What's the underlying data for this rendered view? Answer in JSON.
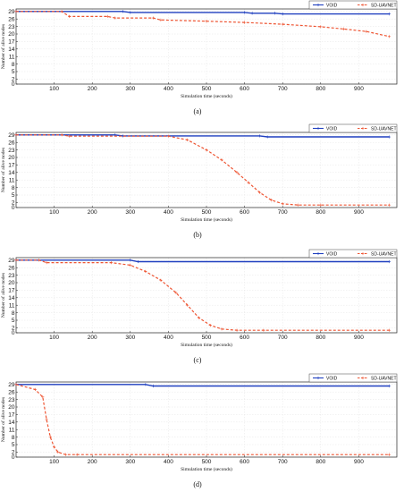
{
  "chart_data": [
    {
      "panel": "(a)",
      "type": "line",
      "xlabel": "Simulation time (seconds)",
      "ylabel": "Number of alive nodes",
      "xlim": [
        0,
        1000
      ],
      "ylim": [
        0,
        30
      ],
      "xticks": [
        100,
        200,
        300,
        400,
        500,
        600,
        700,
        800,
        900
      ],
      "yticks": [
        0,
        2,
        5,
        8,
        11,
        14,
        17,
        20,
        23,
        26,
        29
      ],
      "grid": true,
      "legend": "top-right",
      "series": [
        {
          "name": "VOID",
          "color": "#1f3fbf",
          "style": "solid",
          "marker": "plus",
          "x": [
            0,
            280,
            300,
            600,
            620,
            680,
            700,
            980
          ],
          "y": [
            29,
            29,
            28.6,
            28.6,
            28.3,
            28.3,
            28,
            28
          ]
        },
        {
          "name": "SD-UAVNET",
          "color": "#ee5533",
          "style": "dashed",
          "marker": "plus",
          "x": [
            0,
            120,
            140,
            240,
            260,
            360,
            380,
            500,
            600,
            700,
            800,
            860,
            920,
            980
          ],
          "y": [
            29,
            29,
            27,
            27,
            26.4,
            26.4,
            25.6,
            25.1,
            24.6,
            23.9,
            22.9,
            22,
            21,
            19
          ]
        }
      ]
    },
    {
      "panel": "(b)",
      "type": "line",
      "xlabel": "Simulation time (seconds)",
      "ylabel": "Number of alive nodes",
      "xlim": [
        0,
        1000
      ],
      "ylim": [
        0,
        30
      ],
      "xticks": [
        100,
        200,
        300,
        400,
        500,
        600,
        700,
        800,
        900
      ],
      "yticks": [
        0,
        2,
        5,
        8,
        11,
        14,
        17,
        20,
        23,
        26,
        29
      ],
      "grid": true,
      "legend": "top-right",
      "series": [
        {
          "name": "VOID",
          "color": "#1f3fbf",
          "style": "solid",
          "marker": "plus",
          "x": [
            0,
            260,
            280,
            640,
            660,
            980
          ],
          "y": [
            29,
            29,
            28.6,
            28.6,
            28.2,
            28.2
          ]
        },
        {
          "name": "SD-UAVNET",
          "color": "#ee5533",
          "style": "dashed",
          "marker": "plus",
          "x": [
            0,
            120,
            140,
            400,
            450,
            500,
            540,
            580,
            610,
            640,
            670,
            700,
            740,
            800,
            980
          ],
          "y": [
            29,
            29,
            28.5,
            28.5,
            27,
            23,
            19,
            14,
            10,
            6,
            3,
            1.5,
            1,
            1,
            1
          ]
        }
      ]
    },
    {
      "panel": "(c)",
      "type": "line",
      "xlabel": "Simulation time (seconds)",
      "ylabel": "Number of alive nodes",
      "xlim": [
        0,
        1000
      ],
      "ylim": [
        0,
        30
      ],
      "xticks": [
        100,
        200,
        300,
        400,
        500,
        600,
        700,
        800,
        900
      ],
      "yticks": [
        0,
        2,
        5,
        8,
        11,
        14,
        17,
        20,
        23,
        26,
        29
      ],
      "grid": true,
      "legend": "top-right",
      "series": [
        {
          "name": "VOID",
          "color": "#1f3fbf",
          "style": "solid",
          "marker": "plus",
          "x": [
            0,
            300,
            320,
            980
          ],
          "y": [
            29,
            29,
            28.4,
            28.4
          ]
        },
        {
          "name": "SD-UAVNET",
          "color": "#ee5533",
          "style": "dashed",
          "marker": "plus",
          "x": [
            0,
            60,
            80,
            250,
            300,
            340,
            380,
            420,
            450,
            480,
            510,
            540,
            580,
            650,
            980
          ],
          "y": [
            29,
            29,
            28,
            28,
            27,
            24.5,
            21,
            16,
            11,
            6,
            3,
            1.5,
            1,
            1,
            1
          ]
        }
      ]
    },
    {
      "panel": "(d)",
      "type": "line",
      "xlabel": "Simulation time (seconds)",
      "ylabel": "Number of alive nodes",
      "xlim": [
        0,
        1000
      ],
      "ylim": [
        0,
        30
      ],
      "xticks": [
        100,
        200,
        300,
        400,
        500,
        600,
        700,
        800,
        900
      ],
      "yticks": [
        0,
        2,
        5,
        8,
        11,
        14,
        17,
        20,
        23,
        26,
        29
      ],
      "grid": true,
      "legend": "top-right",
      "series": [
        {
          "name": "VOID",
          "color": "#1f3fbf",
          "style": "solid",
          "marker": "plus",
          "x": [
            0,
            340,
            360,
            980
          ],
          "y": [
            29,
            29,
            28.4,
            28.4
          ]
        },
        {
          "name": "SD-UAVNET",
          "color": "#ee5533",
          "style": "dashed",
          "marker": "plus",
          "x": [
            0,
            50,
            70,
            80,
            90,
            100,
            110,
            130,
            160,
            980
          ],
          "y": [
            29,
            27,
            24,
            15,
            8,
            4,
            2,
            1,
            1,
            1
          ]
        }
      ]
    }
  ]
}
